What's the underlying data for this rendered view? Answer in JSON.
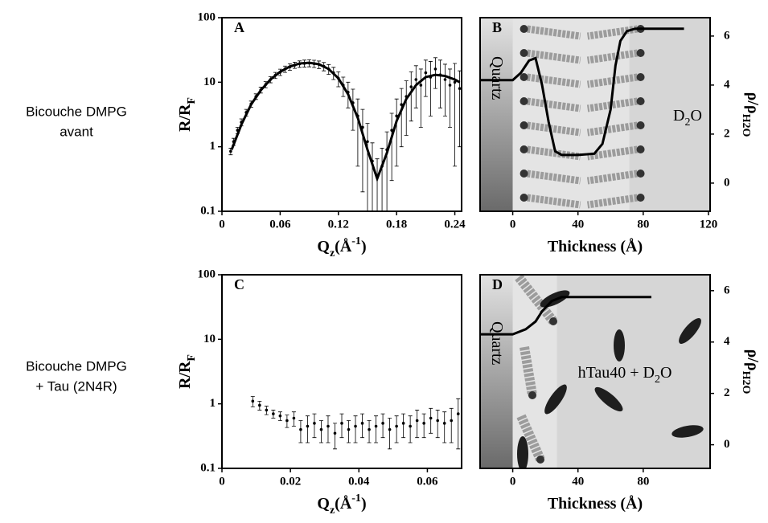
{
  "row_labels": [
    [
      "Bicouche DMPG",
      "avant"
    ],
    [
      "Bicouche DMPG",
      "+ Tau (2N4R)"
    ]
  ],
  "chart_data": [
    {
      "type": "scatter",
      "panel_label": "A",
      "ylog": true,
      "xlim": [
        0,
        0.247
      ],
      "xticks": [
        0,
        0.06,
        0.12,
        0.18,
        0.24
      ],
      "ylim": [
        0.1,
        100
      ],
      "yticks": [
        0.1,
        1,
        10,
        100
      ],
      "x_label": [
        {
          "text": "Q"
        },
        {
          "text": "z",
          "shift": "sub"
        },
        {
          "text": "(Å"
        },
        {
          "text": "-1",
          "shift": "super"
        },
        {
          "text": ")"
        }
      ],
      "y_label": [
        {
          "text": "R/R"
        },
        {
          "text": "F",
          "shift": "sub"
        }
      ],
      "series": [
        {
          "color": "#000000",
          "x": [
            0.009,
            0.012,
            0.016,
            0.02,
            0.025,
            0.03,
            0.035,
            0.04,
            0.045,
            0.05,
            0.055,
            0.06,
            0.065,
            0.07,
            0.075,
            0.08,
            0.085,
            0.09,
            0.095,
            0.1,
            0.105,
            0.11,
            0.115,
            0.12,
            0.125,
            0.13,
            0.135,
            0.14,
            0.145,
            0.15,
            0.155,
            0.16,
            0.165,
            0.17,
            0.175,
            0.18,
            0.185,
            0.19,
            0.195,
            0.2,
            0.205,
            0.21,
            0.215,
            0.22,
            0.225,
            0.23,
            0.235,
            0.24,
            0.245
          ],
          "values": [
            0.85,
            1.2,
            1.8,
            2.4,
            3.4,
            4.6,
            6,
            7.6,
            9.2,
            11,
            12.8,
            14.3,
            16,
            17.3,
            18.4,
            19.2,
            19.6,
            19.8,
            19.4,
            18.8,
            17.6,
            16,
            14,
            11.5,
            9,
            7,
            4.8,
            3,
            2,
            1.2,
            0.6,
            0.35,
            0.5,
            0.9,
            1.8,
            3,
            4.5,
            6,
            8.5,
            11,
            9,
            14,
            12,
            16,
            13,
            11,
            9,
            10,
            8
          ],
          "errors": [
            0.1,
            0.15,
            0.2,
            0.3,
            0.4,
            0.5,
            0.6,
            0.8,
            1,
            1.2,
            1.4,
            1.6,
            1.8,
            2,
            2,
            2.2,
            2.4,
            2.5,
            2.5,
            2.5,
            2.6,
            2.8,
            3,
            3,
            3,
            3,
            3,
            2.5,
            1.8,
            1.1,
            0.55,
            0.3,
            0.45,
            0.8,
            1.5,
            2.5,
            3.5,
            4.5,
            6,
            7,
            7,
            8,
            9,
            8,
            9,
            8,
            7,
            9.5,
            7
          ]
        },
        {
          "type": "line",
          "color": "#000000",
          "x": [
            0.01,
            0.02,
            0.03,
            0.04,
            0.05,
            0.06,
            0.07,
            0.08,
            0.09,
            0.1,
            0.11,
            0.12,
            0.13,
            0.14,
            0.15,
            0.16,
            0.17,
            0.18,
            0.19,
            0.2,
            0.21,
            0.22,
            0.23,
            0.24,
            0.245
          ],
          "values": [
            0.9,
            2.2,
            4.5,
            7.5,
            11,
            14.5,
            17.5,
            19.5,
            20,
            19,
            16,
            11.5,
            6.5,
            2.8,
            0.9,
            0.32,
            0.8,
            2.5,
            5.5,
            9,
            12,
            13,
            12.5,
            11,
            10
          ]
        }
      ]
    },
    {
      "type": "line",
      "panel_label": "B",
      "xlim": [
        -20,
        121
      ],
      "xticks": [
        0,
        40,
        80,
        120
      ],
      "y2lim": [
        -1.15,
        6.75
      ],
      "y2ticks": [
        0,
        2,
        4,
        6
      ],
      "x_label": [
        {
          "text": "Thickness (Å)"
        }
      ],
      "y2_label": [
        {
          "text": "ρ/ρ"
        },
        {
          "text": "H",
          "shift": "sub"
        },
        {
          "text": "2",
          "shift": "sub"
        },
        {
          "text": "O",
          "shift": "sub"
        }
      ],
      "annotations": [
        [
          {
            "text": "Quartz"
          }
        ],
        [
          {
            "text": "D"
          },
          {
            "text": "2",
            "shift": "sub"
          },
          {
            "text": "O"
          }
        ]
      ],
      "series": [
        {
          "axis": "y2",
          "color": "#000000",
          "x": [
            -20,
            0,
            5,
            10,
            14,
            18,
            22,
            26,
            30,
            40,
            50,
            55,
            60,
            63,
            66,
            70,
            75,
            105
          ],
          "values": [
            4.2,
            4.2,
            4.5,
            5,
            5.1,
            4,
            2.5,
            1.3,
            1.15,
            1.15,
            1.2,
            1.6,
            3,
            4.8,
            5.8,
            6.2,
            6.3,
            6.3
          ]
        }
      ]
    },
    {
      "type": "scatter",
      "panel_label": "C",
      "ylog": true,
      "xlim": [
        0,
        0.07
      ],
      "xticks": [
        0,
        0.02,
        0.04,
        0.06
      ],
      "ylim": [
        0.1,
        100
      ],
      "yticks": [
        0.1,
        1,
        10,
        100
      ],
      "x_label": [
        {
          "text": "Q"
        },
        {
          "text": "z",
          "shift": "sub"
        },
        {
          "text": "(Å"
        },
        {
          "text": "-1",
          "shift": "super"
        },
        {
          "text": ")"
        }
      ],
      "y_label": [
        {
          "text": "R/R"
        },
        {
          "text": "F",
          "shift": "sub"
        }
      ],
      "series": [
        {
          "color": "#000000",
          "x": [
            0.009,
            0.011,
            0.013,
            0.015,
            0.017,
            0.019,
            0.021,
            0.023,
            0.025,
            0.027,
            0.029,
            0.031,
            0.033,
            0.035,
            0.037,
            0.039,
            0.041,
            0.043,
            0.045,
            0.047,
            0.049,
            0.051,
            0.053,
            0.055,
            0.057,
            0.059,
            0.061,
            0.063,
            0.065,
            0.067,
            0.069
          ],
          "values": [
            1.1,
            0.95,
            0.8,
            0.7,
            0.65,
            0.55,
            0.6,
            0.4,
            0.45,
            0.5,
            0.4,
            0.45,
            0.35,
            0.5,
            0.4,
            0.45,
            0.5,
            0.4,
            0.45,
            0.5,
            0.4,
            0.45,
            0.5,
            0.45,
            0.55,
            0.5,
            0.6,
            0.55,
            0.5,
            0.55,
            0.7
          ],
          "errors": [
            0.2,
            0.15,
            0.12,
            0.1,
            0.1,
            0.12,
            0.15,
            0.15,
            0.2,
            0.2,
            0.15,
            0.2,
            0.15,
            0.2,
            0.15,
            0.2,
            0.2,
            0.15,
            0.2,
            0.2,
            0.2,
            0.2,
            0.2,
            0.2,
            0.25,
            0.2,
            0.25,
            0.25,
            0.25,
            0.3,
            0.5
          ]
        }
      ]
    },
    {
      "type": "line",
      "panel_label": "D",
      "xlim": [
        -20,
        121
      ],
      "xticks": [
        0,
        40,
        80
      ],
      "y2lim": [
        -0.92,
        6.62
      ],
      "y2ticks": [
        0,
        2,
        4,
        6
      ],
      "x_label": [
        {
          "text": "Thickness (Å)"
        }
      ],
      "y2_label": [
        {
          "text": "ρ/ρ"
        },
        {
          "text": "H",
          "shift": "sub"
        },
        {
          "text": "2",
          "shift": "sub"
        },
        {
          "text": "O",
          "shift": "sub"
        }
      ],
      "annotations": [
        [
          {
            "text": "Quartz"
          }
        ],
        [
          {
            "text": "hTau40 + D"
          },
          {
            "text": "2",
            "shift": "sub"
          },
          {
            "text": "O"
          }
        ]
      ],
      "series": [
        {
          "axis": "y2",
          "color": "#000000",
          "x": [
            -20,
            0,
            8,
            14,
            18,
            24,
            30,
            85
          ],
          "values": [
            4.3,
            4.3,
            4.5,
            4.8,
            5.2,
            5.6,
            5.75,
            5.75
          ]
        }
      ]
    }
  ]
}
